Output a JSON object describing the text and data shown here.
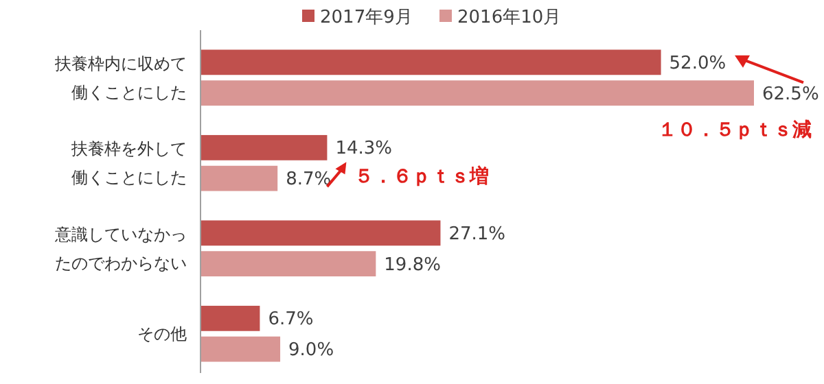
{
  "chart_data": {
    "type": "bar",
    "orientation": "horizontal",
    "categories": [
      "扶養枠内に収めて働くことにした",
      "扶養枠を外して働くことにした",
      "意識していなかったのでわからない",
      "その他"
    ],
    "series": [
      {
        "name": "2017年9月",
        "color": "#c0504d",
        "values": [
          52.0,
          14.3,
          27.1,
          6.7
        ],
        "value_labels": [
          "52.0%",
          "14.3%",
          "27.1%",
          "6.7%"
        ]
      },
      {
        "name": "2016年10月",
        "color": "#d99694",
        "values": [
          62.5,
          8.7,
          19.8,
          9.0
        ],
        "value_labels": [
          "62.5%",
          "8.7%",
          "19.8%",
          "9.0%"
        ]
      }
    ],
    "tick_labels": "y",
    "legend": "top",
    "annotations": [
      {
        "text": "１０．５ｐｔｓ減",
        "x": 62.5,
        "y": "扶養枠内に収めて働くことにした"
      },
      {
        "text": "５．６ｐｔｓ増",
        "x": 14.3,
        "y": "扶養枠を外して働くことにした"
      }
    ]
  }
}
